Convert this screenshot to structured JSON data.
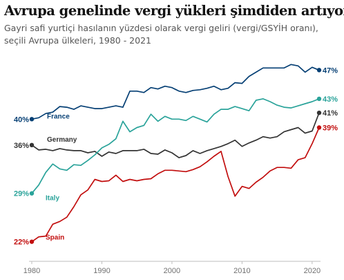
{
  "title": "Avrupa genelinde vergi yükleri şimdiden artıyor",
  "subtitle": "Gayri safi yurtiçi hasılanın yüzdesi olarak vergi geliri (vergi/GSYİH oranı), seçili Avrupa ülkeleri, 1980 - 2021",
  "chart_data": {
    "type": "line",
    "x_ticks": [
      1980,
      1990,
      2000,
      2010,
      2020
    ],
    "xlim": [
      1980,
      2021
    ],
    "ylim": [
      20,
      50
    ],
    "grid": false,
    "legend": "none",
    "x": [
      1980,
      1981,
      1982,
      1983,
      1984,
      1985,
      1986,
      1987,
      1988,
      1989,
      1990,
      1991,
      1992,
      1993,
      1994,
      1995,
      1996,
      1997,
      1998,
      1999,
      2000,
      2001,
      2002,
      2003,
      2004,
      2005,
      2006,
      2007,
      2008,
      2009,
      2010,
      2011,
      2012,
      2013,
      2014,
      2015,
      2016,
      2017,
      2018,
      2019,
      2020,
      2021
    ],
    "series": [
      {
        "name": "France",
        "color": "#053f74",
        "start_label": "40%",
        "end_label": "47%",
        "values": [
          40.1,
          40.3,
          40.9,
          41.1,
          41.9,
          41.8,
          41.5,
          42.0,
          41.8,
          41.6,
          41.6,
          41.8,
          42.0,
          41.8,
          44.1,
          44.1,
          43.9,
          44.6,
          44.4,
          44.8,
          44.6,
          44.1,
          43.9,
          44.2,
          44.3,
          44.5,
          44.8,
          44.3,
          44.5,
          45.3,
          45.2,
          46.2,
          46.8,
          47.4,
          47.4,
          47.4,
          47.4,
          47.9,
          47.7,
          46.8,
          47.5,
          47.1
        ]
      },
      {
        "name": "Germany",
        "color": "#333333",
        "start_label": "36%",
        "end_label": "41%",
        "values": [
          36.4,
          35.7,
          35.8,
          35.6,
          35.9,
          35.7,
          35.6,
          35.6,
          35.3,
          35.5,
          34.8,
          35.4,
          35.2,
          35.6,
          35.6,
          35.6,
          35.8,
          35.2,
          35.1,
          35.7,
          35.3,
          34.6,
          34.9,
          35.6,
          35.2,
          35.6,
          35.9,
          36.2,
          36.6,
          37.1,
          36.2,
          36.7,
          37.1,
          37.6,
          37.4,
          37.6,
          38.3,
          38.6,
          38.9,
          38.1,
          38.4,
          41.0
        ]
      },
      {
        "name": "Italy",
        "color": "#2aa39a",
        "start_label": "29%",
        "end_label": "43%",
        "values": [
          29.5,
          30.7,
          32.5,
          33.7,
          33.0,
          32.8,
          33.6,
          33.5,
          34.2,
          35.0,
          36.0,
          36.5,
          37.3,
          39.8,
          38.3,
          38.9,
          39.2,
          40.8,
          39.8,
          40.5,
          40.1,
          40.1,
          39.9,
          40.5,
          40.1,
          39.7,
          40.8,
          41.5,
          41.5,
          41.9,
          41.6,
          41.3,
          42.8,
          43.0,
          42.6,
          42.1,
          41.8,
          41.7,
          42.0,
          42.3,
          42.6,
          43.0
        ]
      },
      {
        "name": "Spain",
        "color": "#c20e0e",
        "start_label": "22%",
        "end_label": "39%",
        "values": [
          22.6,
          23.3,
          23.4,
          25.1,
          25.5,
          26.1,
          27.6,
          29.3,
          30.0,
          31.5,
          31.2,
          31.3,
          32.1,
          31.2,
          31.5,
          31.3,
          31.5,
          31.6,
          32.3,
          32.8,
          32.8,
          32.7,
          32.6,
          32.9,
          33.3,
          34.0,
          34.8,
          35.5,
          31.9,
          29.1,
          30.5,
          30.2,
          31.1,
          31.8,
          32.7,
          33.2,
          33.2,
          33.1,
          34.3,
          34.6,
          36.6,
          38.9
        ]
      }
    ]
  }
}
